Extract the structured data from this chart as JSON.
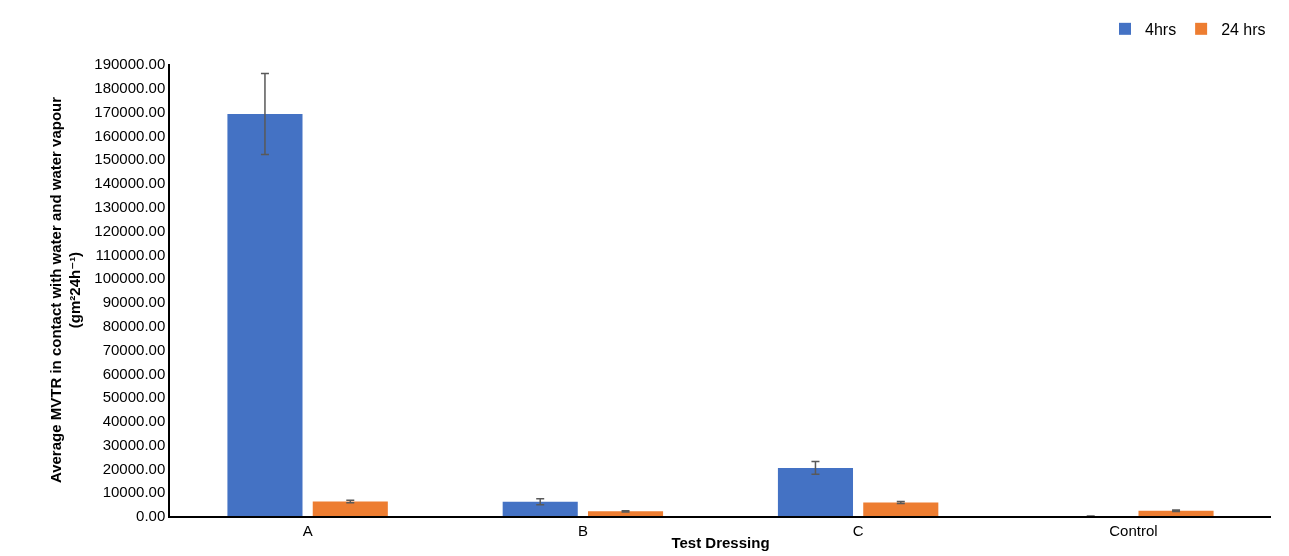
{
  "chart_data": {
    "type": "bar",
    "xlabel": "Test Dressing",
    "ylabel": "Average MVTR in contact with water and water vapour\n(gm²24h⁻¹)",
    "categories": [
      "A",
      "B",
      "C",
      "Control"
    ],
    "series": [
      {
        "name": "4hrs",
        "color": "#4472c4",
        "values": [
          169000,
          6000,
          20200,
          0
        ],
        "errors": [
          17000,
          1300,
          2700,
          null
        ]
      },
      {
        "name": "24 hrs",
        "color": "#ed7d31",
        "values": [
          6100,
          1950,
          5700,
          2170
        ],
        "errors": [
          500,
          300,
          400,
          300
        ]
      }
    ],
    "ylim": [
      0,
      190000
    ],
    "yticks": [
      {
        "value": 0,
        "label": "0.00"
      },
      {
        "value": 10000,
        "label": "10000.00"
      },
      {
        "value": 20000,
        "label": "20000.00"
      },
      {
        "value": 30000,
        "label": "30000.00"
      },
      {
        "value": 40000,
        "label": "40000.00"
      },
      {
        "value": 50000,
        "label": "50000.00"
      },
      {
        "value": 60000,
        "label": "60000.00"
      },
      {
        "value": 70000,
        "label": "70000.00"
      },
      {
        "value": 80000,
        "label": "80000.00"
      },
      {
        "value": 90000,
        "label": "90000.00"
      },
      {
        "value": 100000,
        "label": "100000.00"
      },
      {
        "value": 110000,
        "label": "110000.00"
      },
      {
        "value": 120000,
        "label": "120000.00"
      },
      {
        "value": 130000,
        "label": "130000.00"
      },
      {
        "value": 140000,
        "label": "140000.00"
      },
      {
        "value": 150000,
        "label": "150000.00"
      },
      {
        "value": 160000,
        "label": "160000.00"
      },
      {
        "value": 170000,
        "label": "170000.00"
      },
      {
        "value": 180000,
        "label": "180000.00"
      },
      {
        "value": 190000,
        "label": "190000.00"
      }
    ],
    "grid": false,
    "legend": "top right"
  }
}
